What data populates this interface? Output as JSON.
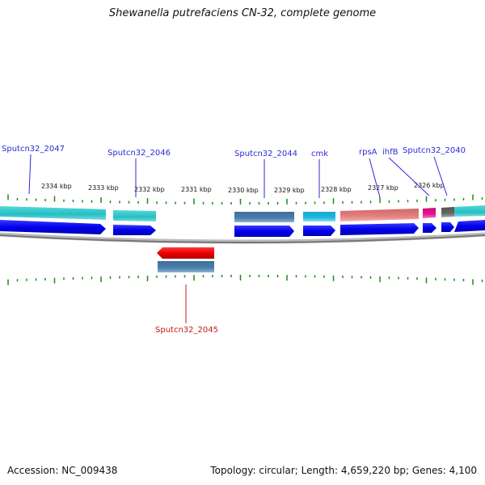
{
  "title": "Shewanella putrefaciens CN-32, complete genome",
  "footer": {
    "accession": "Accession: NC_009438",
    "summary": "Topology: circular; Length: 4,659,220 bp; Genes: 4,100"
  },
  "scale": {
    "ticks": [
      "2334 kbp",
      "2333 kbp",
      "2332 kbp",
      "2331 kbp",
      "2330 kbp",
      "2329 kbp",
      "2328 kbp",
      "2327 kbp",
      "2326 kbp"
    ]
  },
  "genes": [
    {
      "label": "Sputcn32_2047",
      "strand": "+",
      "color": "#2b2bd6"
    },
    {
      "label": "Sputcn32_2046",
      "strand": "+",
      "color": "#2b2bd6"
    },
    {
      "label": "Sputcn32_2044",
      "strand": "+",
      "color": "#2b2bd6"
    },
    {
      "label": "cmk",
      "strand": "+",
      "color": "#2b2bd6"
    },
    {
      "label": "rpsA",
      "strand": "+",
      "color": "#2b2bd6"
    },
    {
      "label": "ihfB",
      "strand": "+",
      "color": "#2b2bd6"
    },
    {
      "label": "Sputcn32_2040",
      "strand": "+",
      "color": "#2b2bd6"
    },
    {
      "label": "Sputcn32_2045",
      "strand": "-",
      "color": "#c41a1a"
    }
  ],
  "colors": {
    "forward_cds": "#0000ee",
    "reverse_cds": "#ee0000",
    "feature_teal": "#22bfc4",
    "feature_steelblue": "#4a7fae",
    "feature_cyan": "#1fb8e0",
    "feature_salmon": "#e58080",
    "feature_magenta": "#e6148c",
    "feature_grey": "#666666",
    "ticks": "#1a8a1a",
    "backbone": "#888888"
  }
}
